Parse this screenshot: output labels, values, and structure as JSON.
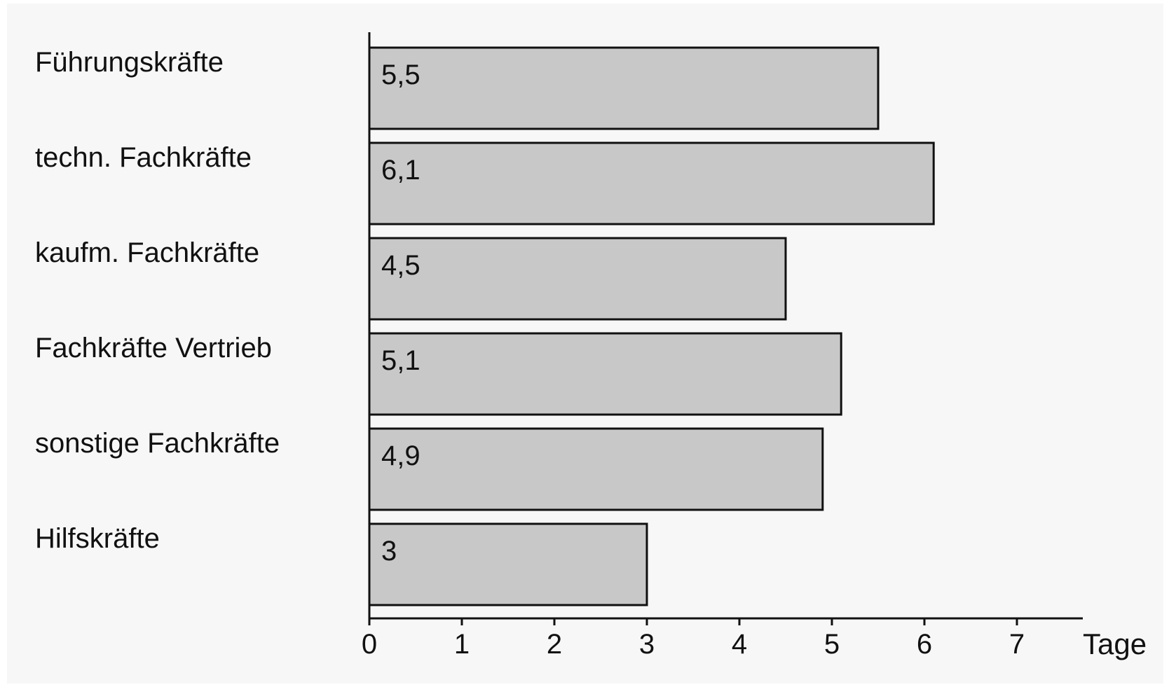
{
  "chart_data": {
    "type": "bar",
    "orientation": "horizontal",
    "categories": [
      "Führungskräfte",
      "techn. Fachkräfte",
      "kaufm. Fachkräfte",
      "Fachkräfte Vertrieb",
      "sonstige Fachkräfte",
      "Hilfskräfte"
    ],
    "values": [
      5.5,
      6.1,
      4.5,
      5.1,
      4.9,
      3
    ],
    "value_labels": [
      "5,5",
      "6,1",
      "4,5",
      "5,1",
      "4,9",
      "3"
    ],
    "x_ticks": [
      "0",
      "1",
      "2",
      "3",
      "4",
      "5",
      "6",
      "7"
    ],
    "xlabel": "Tage",
    "xlim": [
      0,
      7.7
    ],
    "grid": false,
    "legend": "none",
    "colors": {
      "background": "#f7f7f7",
      "bar_fill": "#c8c8c8",
      "bar_stroke": "#111111",
      "axis": "#111111"
    }
  }
}
